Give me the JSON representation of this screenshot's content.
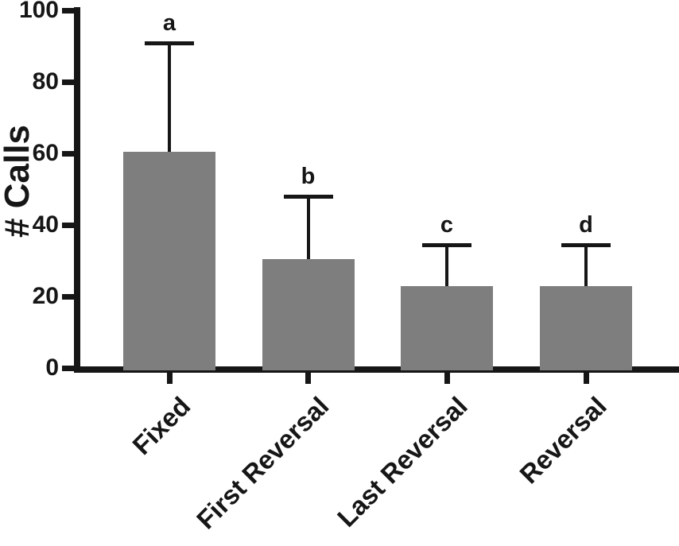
{
  "chart_data": {
    "type": "bar",
    "title": "",
    "xlabel": "",
    "ylabel": "# Calls",
    "categories": [
      "Fixed",
      "First Reversal",
      "Last Reversal",
      "Reversal"
    ],
    "values": [
      60.5,
      30.5,
      23,
      23
    ],
    "errors_upper": [
      30.5,
      17.5,
      11.5,
      11.5
    ],
    "bar_letters": [
      "a",
      "b",
      "c",
      "d"
    ],
    "ylim": [
      0,
      100
    ],
    "yticks": [
      0,
      20,
      40,
      60,
      80,
      100
    ],
    "grid": false,
    "legend": "none",
    "bar_color": "#7e7e7e",
    "axis_color": "#161616"
  }
}
